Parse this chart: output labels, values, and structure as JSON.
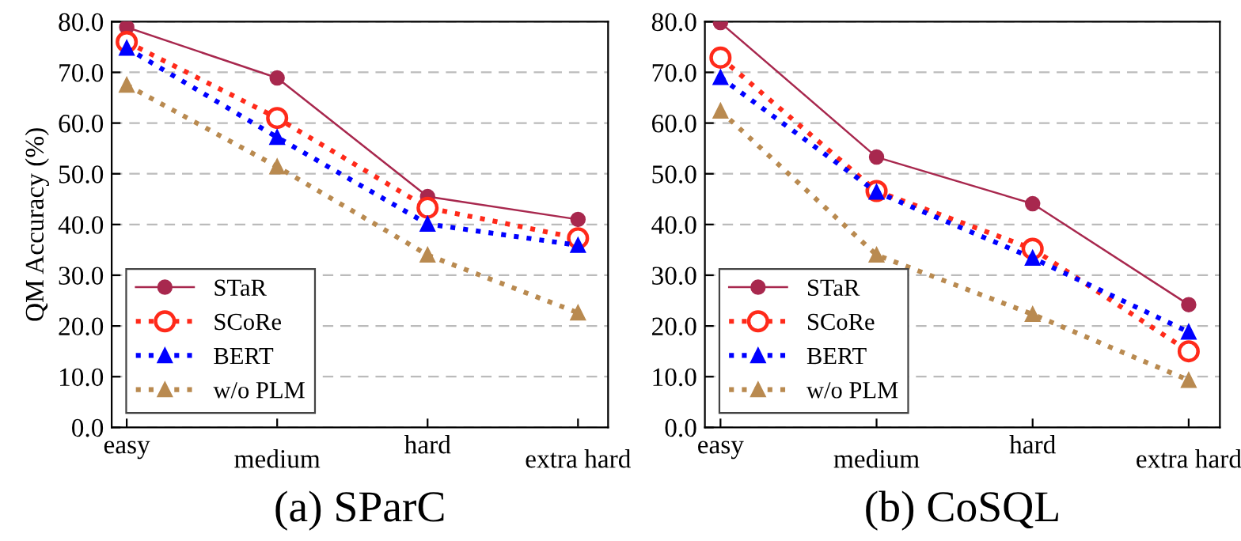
{
  "chart_data": [
    {
      "type": "line",
      "title": "(a) SParC",
      "ylabel": "QM Accuracy (%)",
      "categories": [
        "easy",
        "medium",
        "hard",
        "extra hard"
      ],
      "ylim": [
        0,
        80
      ],
      "yticks": [
        {
          "value": 0,
          "label": "0.0"
        },
        {
          "value": 10,
          "label": "10.0"
        },
        {
          "value": 20,
          "label": "20.0"
        },
        {
          "value": 30,
          "label": "30.0"
        },
        {
          "value": 40,
          "label": "40.0"
        },
        {
          "value": 50,
          "label": "50.0"
        },
        {
          "value": 60,
          "label": "60.0"
        },
        {
          "value": 70,
          "label": "70.0"
        },
        {
          "value": 80,
          "label": "80.0"
        }
      ],
      "grid": "y",
      "legend": "bottom left",
      "series": [
        {
          "name": "STaR",
          "color": "#a8284e",
          "marker": "circle",
          "line_style": "solid",
          "values": [
            78.9,
            68.9,
            45.5,
            41.0
          ]
        },
        {
          "name": "SCoRe",
          "color": "#ff2a1a",
          "marker": "circle",
          "line_style": "dotted",
          "values": [
            76.0,
            61.0,
            43.3,
            37.3
          ]
        },
        {
          "name": "BERT",
          "color": "#0000ff",
          "marker": "triangle",
          "line_style": "dotted",
          "values": [
            74.8,
            57.2,
            40.1,
            35.9
          ]
        },
        {
          "name": "w/o PLM",
          "color": "#b98a50",
          "marker": "triangle",
          "line_style": "dotted",
          "values": [
            67.5,
            51.4,
            34.0,
            22.6
          ]
        }
      ]
    },
    {
      "type": "line",
      "title": "(b) CoSQL",
      "categories": [
        "easy",
        "medium",
        "hard",
        "extra hard"
      ],
      "ylim": [
        0,
        80
      ],
      "yticks": [
        {
          "value": 0,
          "label": "0.0"
        },
        {
          "value": 10,
          "label": "10.0"
        },
        {
          "value": 20,
          "label": "20.0"
        },
        {
          "value": 30,
          "label": "30.0"
        },
        {
          "value": 40,
          "label": "40.0"
        },
        {
          "value": 50,
          "label": "50.0"
        },
        {
          "value": 60,
          "label": "60.0"
        },
        {
          "value": 70,
          "label": "70.0"
        },
        {
          "value": 80,
          "label": "80.0"
        }
      ],
      "grid": "y",
      "legend": "bottom left",
      "series": [
        {
          "name": "STaR",
          "color": "#a8284e",
          "marker": "circle",
          "line_style": "solid",
          "values": [
            79.8,
            53.3,
            44.1,
            24.2
          ]
        },
        {
          "name": "SCoRe",
          "color": "#ff2a1a",
          "marker": "circle",
          "line_style": "dotted",
          "values": [
            72.9,
            46.6,
            35.2,
            15.0
          ]
        },
        {
          "name": "BERT",
          "color": "#0000ff",
          "marker": "triangle",
          "line_style": "dotted",
          "values": [
            69.0,
            46.4,
            33.4,
            18.8
          ]
        },
        {
          "name": "w/o PLM",
          "color": "#b98a50",
          "marker": "triangle",
          "line_style": "dotted",
          "values": [
            62.4,
            34.0,
            22.3,
            9.3
          ]
        }
      ]
    }
  ]
}
